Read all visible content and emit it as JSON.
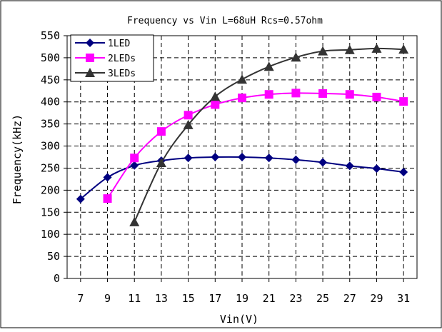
{
  "chart_data": {
    "type": "line",
    "title": "Frequency vs Vin L=68uH Rcs=0.57ohm",
    "xlabel": "Vin(V)",
    "ylabel": "Frequency(kHz)",
    "x_ticks": [
      "7",
      "9",
      "11",
      "13",
      "15",
      "17",
      "19",
      "21",
      "23",
      "25",
      "27",
      "29",
      "31"
    ],
    "y_ticks": [
      "0",
      "50",
      "100",
      "150",
      "200",
      "250",
      "300",
      "350",
      "400",
      "450",
      "500",
      "550"
    ],
    "xlim": [
      6,
      32
    ],
    "ylim": [
      0,
      550
    ],
    "grid": true,
    "legend_position": "top-left",
    "series": [
      {
        "name": "1LED",
        "color": "#000080",
        "marker": "diamond",
        "x": [
          7,
          9,
          11,
          13,
          15,
          17,
          19,
          21,
          23,
          25,
          27,
          29,
          31
        ],
        "values": [
          180,
          229,
          256,
          267,
          273,
          275,
          275,
          273,
          269,
          263,
          255,
          249,
          241
        ]
      },
      {
        "name": "2LEDs",
        "color": "#FF00FF",
        "marker": "square",
        "x": [
          9,
          11,
          13,
          15,
          17,
          19,
          21,
          23,
          25,
          27,
          29,
          31
        ],
        "values": [
          181,
          273,
          333,
          370,
          394,
          409,
          417,
          420,
          419,
          417,
          411,
          401
        ]
      },
      {
        "name": "3LEDs",
        "color": "#333333",
        "marker": "triangle",
        "x": [
          11,
          13,
          15,
          17,
          19,
          21,
          23,
          25,
          27,
          29,
          31
        ],
        "values": [
          128,
          262,
          348,
          412,
          451,
          480,
          501,
          515,
          518,
          521,
          519
        ]
      }
    ]
  }
}
